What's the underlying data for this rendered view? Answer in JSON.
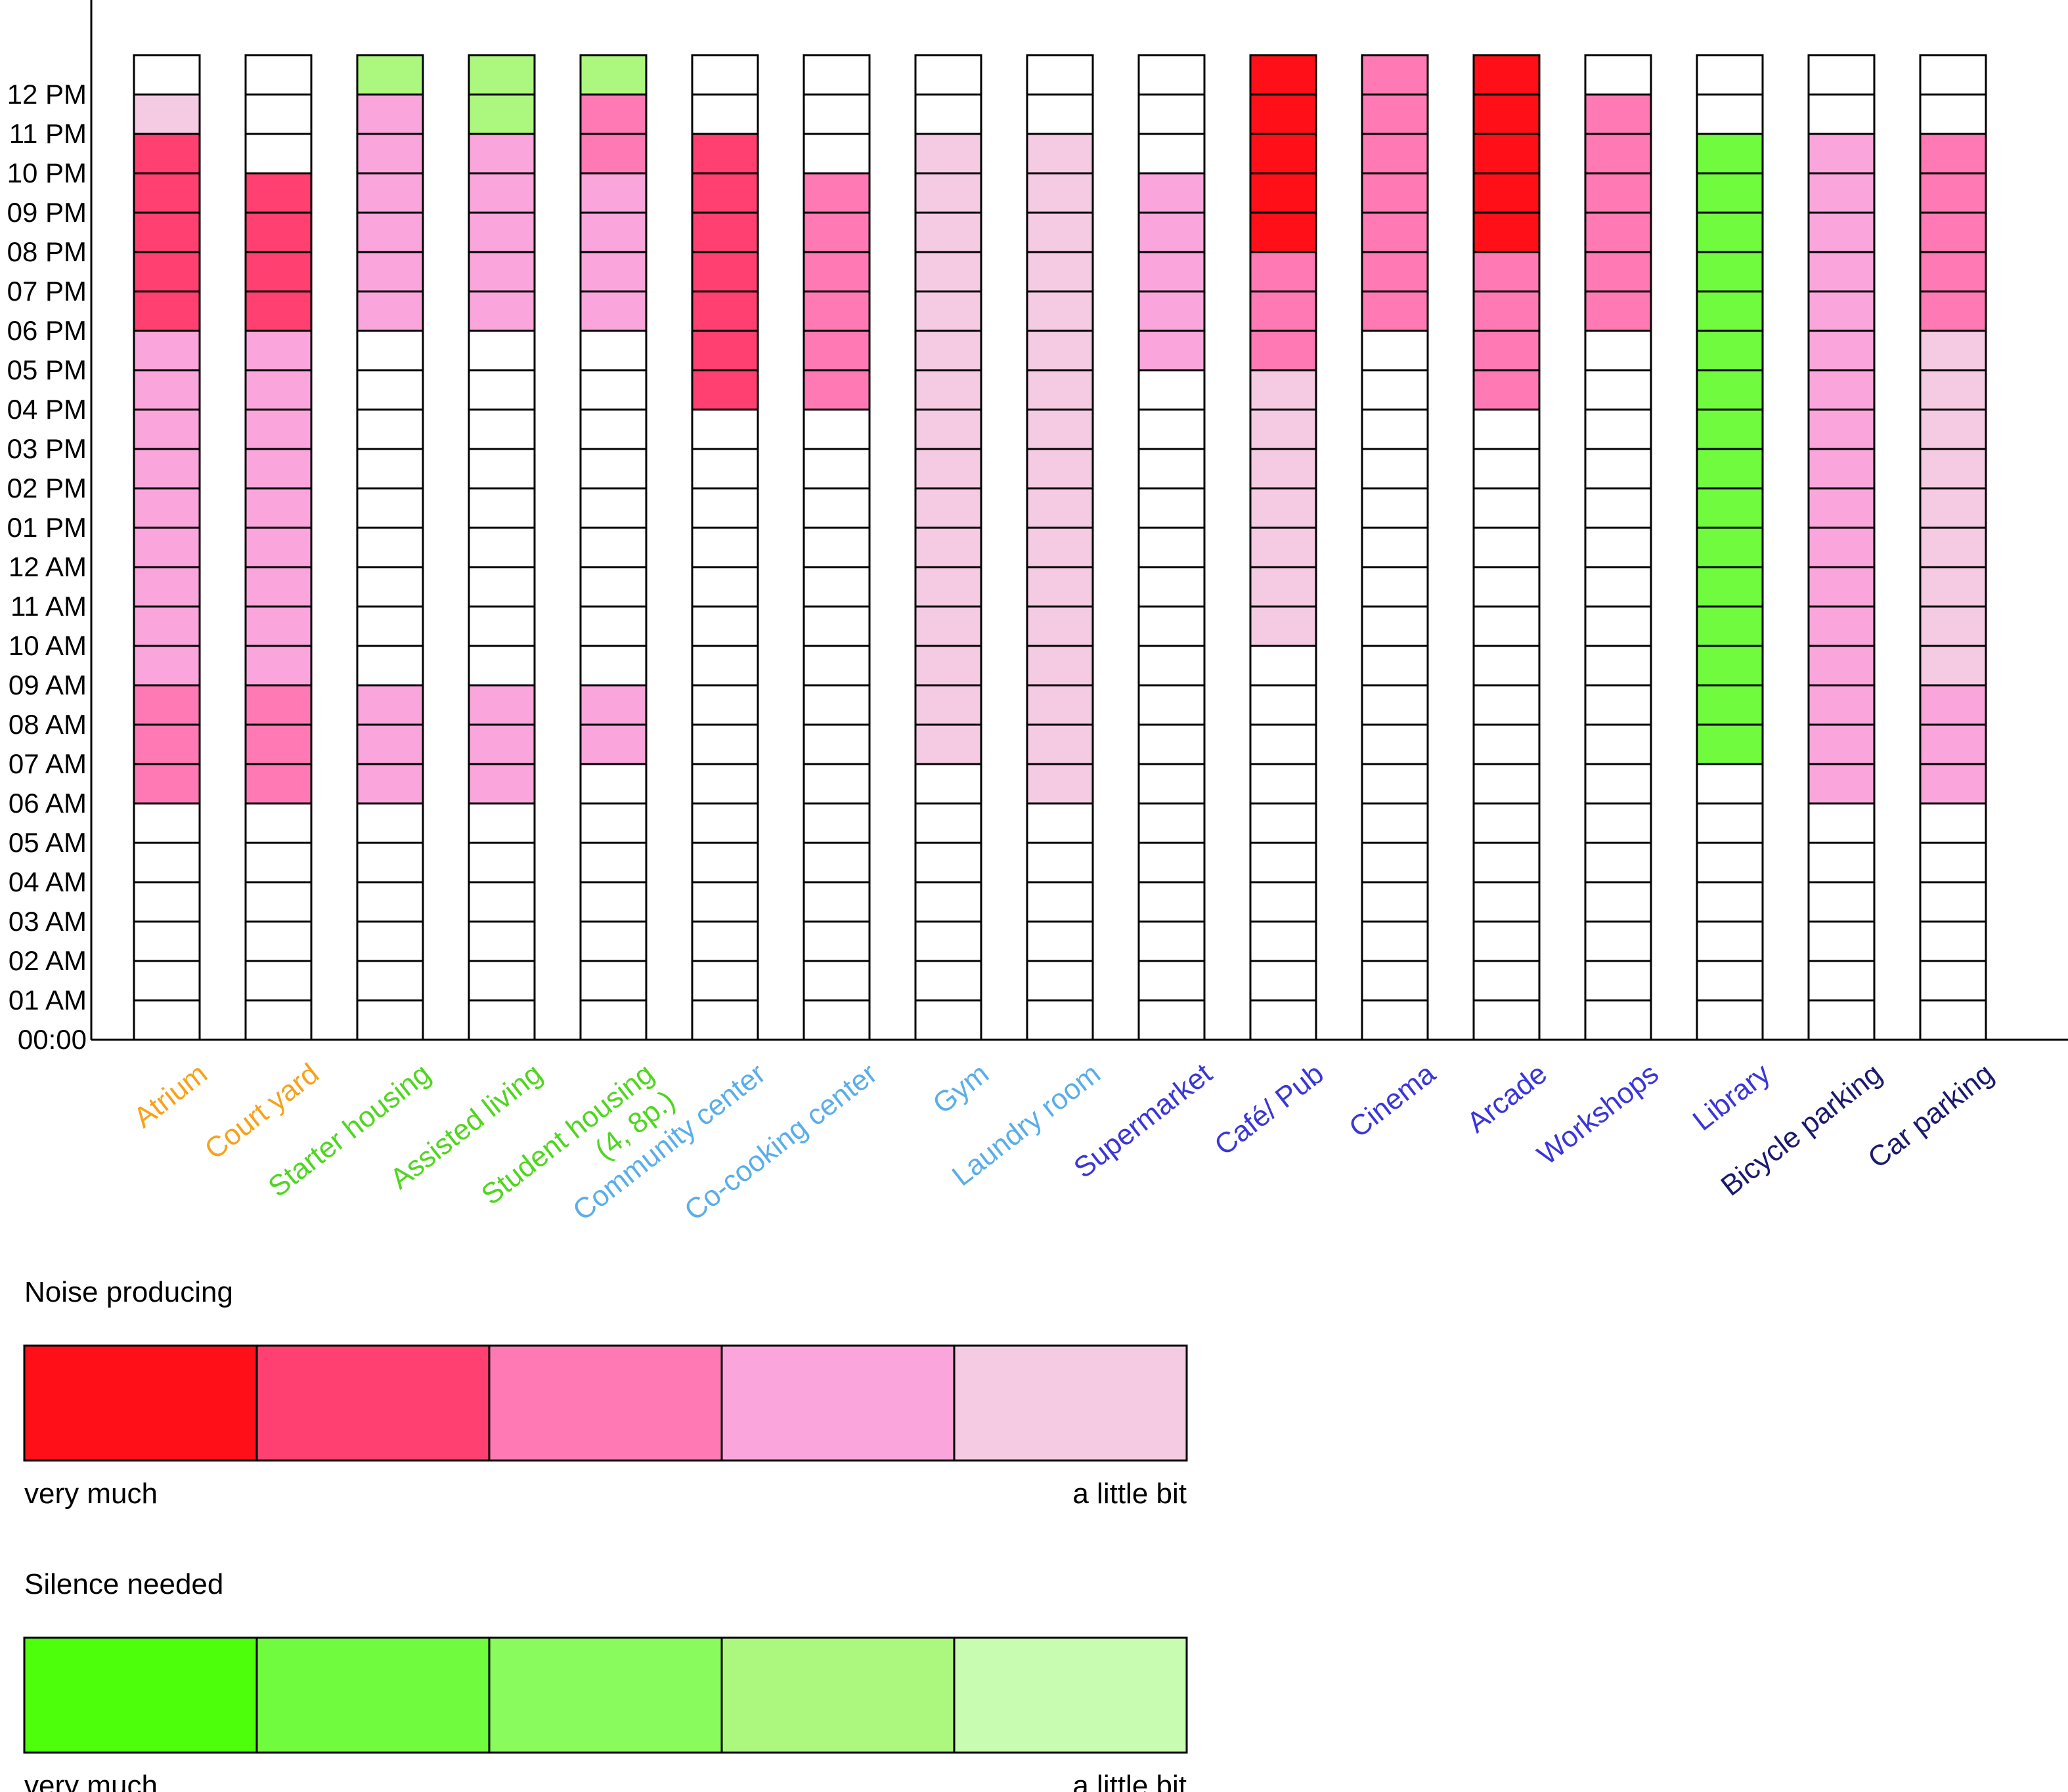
{
  "chart_data": {
    "type": "heatmap",
    "y_ticks": [
      "00:00",
      "01 AM",
      "02 AM",
      "03 AM",
      "04 AM",
      "05 AM",
      "06 AM",
      "07 AM",
      "08 AM",
      "09 AM",
      "10 AM",
      "11 AM",
      "12 AM",
      "01 PM",
      "02 PM",
      "03 PM",
      "04 PM",
      "05 PM",
      "06 PM",
      "07 PM",
      "08 PM",
      "09 PM",
      "10 PM",
      "11 PM",
      "12 PM"
    ],
    "slot_count": 25,
    "level_note": "cells listed from bottom (00:00-01 AM) upward; 0 = none, N1..N5 = noise producing (N1 very much .. N5 a little bit), S1..S5 = silence needed (S1 very much .. S5 a little bit)",
    "columns": [
      {
        "label": "Atrium",
        "color": "#f7a21b",
        "cells": [
          0,
          0,
          0,
          0,
          0,
          0,
          "N3",
          "N3",
          "N3",
          "N4",
          "N4",
          "N4",
          "N4",
          "N4",
          "N4",
          "N4",
          "N4",
          "N4",
          "N2",
          "N2",
          "N2",
          "N2",
          "N2",
          "N5",
          0
        ]
      },
      {
        "label": "Court yard",
        "color": "#f7a21b",
        "cells": [
          0,
          0,
          0,
          0,
          0,
          0,
          "N3",
          "N3",
          "N3",
          "N4",
          "N4",
          "N4",
          "N4",
          "N4",
          "N4",
          "N4",
          "N4",
          "N4",
          "N2",
          "N2",
          "N2",
          "N2",
          0,
          0,
          0
        ]
      },
      {
        "label": "Starter housing",
        "color": "#4fd61e",
        "cells": [
          0,
          0,
          0,
          0,
          0,
          0,
          "N4",
          "N4",
          "N4",
          0,
          0,
          0,
          0,
          0,
          0,
          0,
          0,
          0,
          "N4",
          "N4",
          "N4",
          "N4",
          "N4",
          "N4",
          "S4"
        ]
      },
      {
        "label": "Assisted living",
        "color": "#4fd61e",
        "cells": [
          0,
          0,
          0,
          0,
          0,
          0,
          "N4",
          "N4",
          "N4",
          0,
          0,
          0,
          0,
          0,
          0,
          0,
          0,
          0,
          "N4",
          "N4",
          "N4",
          "N4",
          "N4",
          "S4",
          "S4"
        ]
      },
      {
        "label": "Student housing\n(4, 8p.)",
        "color": "#4fd61e",
        "cells": [
          0,
          0,
          0,
          0,
          0,
          0,
          0,
          "N4",
          "N4",
          0,
          0,
          0,
          0,
          0,
          0,
          0,
          0,
          0,
          "N4",
          "N4",
          "N4",
          "N4",
          "N3",
          "N3",
          "S4"
        ]
      },
      {
        "label": "Community center",
        "color": "#5aaee8",
        "cells": [
          0,
          0,
          0,
          0,
          0,
          0,
          0,
          0,
          0,
          0,
          0,
          0,
          0,
          0,
          0,
          0,
          "N2",
          "N2",
          "N2",
          "N2",
          "N2",
          "N2",
          "N2",
          0,
          0
        ]
      },
      {
        "label": "Co-cooking center",
        "color": "#5aaee8",
        "cells": [
          0,
          0,
          0,
          0,
          0,
          0,
          0,
          0,
          0,
          0,
          0,
          0,
          0,
          0,
          0,
          0,
          "N3",
          "N3",
          "N3",
          "N3",
          "N3",
          "N3",
          0,
          0,
          0
        ]
      },
      {
        "label": "Gym",
        "color": "#5aaee8",
        "cells": [
          0,
          0,
          0,
          0,
          0,
          0,
          0,
          "N5",
          "N5",
          "N5",
          "N5",
          "N5",
          "N5",
          "N5",
          "N5",
          "N5",
          "N5",
          "N5",
          "N5",
          "N5",
          "N5",
          "N5",
          "N5",
          0,
          0
        ]
      },
      {
        "label": "Laundry room",
        "color": "#5aaee8",
        "cells": [
          0,
          0,
          0,
          0,
          0,
          0,
          "N5",
          "N5",
          "N5",
          "N5",
          "N5",
          "N5",
          "N5",
          "N5",
          "N5",
          "N5",
          "N5",
          "N5",
          "N5",
          "N5",
          "N5",
          "N5",
          "N5",
          0,
          0
        ]
      },
      {
        "label": "Supermarket",
        "color": "#3a36d9",
        "cells": [
          0,
          0,
          0,
          0,
          0,
          0,
          0,
          0,
          0,
          0,
          0,
          0,
          0,
          0,
          0,
          0,
          0,
          "N4",
          "N4",
          "N4",
          "N4",
          "N4",
          0,
          0,
          0
        ]
      },
      {
        "label": "Café/ Pub",
        "color": "#3a36d9",
        "cells": [
          0,
          0,
          0,
          0,
          0,
          0,
          0,
          0,
          0,
          0,
          "N5",
          "N5",
          "N5",
          "N5",
          "N5",
          "N5",
          "N5",
          "N3",
          "N3",
          "N3",
          "N1",
          "N1",
          "N1",
          "N1",
          "N1"
        ]
      },
      {
        "label": "Cinema",
        "color": "#3a36d9",
        "cells": [
          0,
          0,
          0,
          0,
          0,
          0,
          0,
          0,
          0,
          0,
          0,
          0,
          0,
          0,
          0,
          0,
          0,
          0,
          "N3",
          "N3",
          "N3",
          "N3",
          "N3",
          "N3",
          "N3"
        ]
      },
      {
        "label": "Arcade",
        "color": "#3a36d9",
        "cells": [
          0,
          0,
          0,
          0,
          0,
          0,
          0,
          0,
          0,
          0,
          0,
          0,
          0,
          0,
          0,
          0,
          "N3",
          "N3",
          "N3",
          "N3",
          "N1",
          "N1",
          "N1",
          "N1",
          "N1"
        ]
      },
      {
        "label": "Workshops",
        "color": "#3a36d9",
        "cells": [
          0,
          0,
          0,
          0,
          0,
          0,
          0,
          0,
          0,
          0,
          0,
          0,
          0,
          0,
          0,
          0,
          0,
          0,
          "N3",
          "N3",
          "N3",
          "N3",
          "N3",
          "N3",
          0
        ]
      },
      {
        "label": "Library",
        "color": "#3a36d9",
        "cells": [
          0,
          0,
          0,
          0,
          0,
          0,
          0,
          "S2",
          "S2",
          "S2",
          "S2",
          "S2",
          "S2",
          "S2",
          "S2",
          "S2",
          "S2",
          "S2",
          "S2",
          "S2",
          "S2",
          "S2",
          "S2",
          0,
          0
        ]
      },
      {
        "label": "Bicycle parking",
        "color": "#1a1a6e",
        "cells": [
          0,
          0,
          0,
          0,
          0,
          0,
          "N4",
          "N4",
          "N4",
          "N4",
          "N4",
          "N4",
          "N4",
          "N4",
          "N4",
          "N4",
          "N4",
          "N4",
          "N4",
          "N4",
          "N4",
          "N4",
          "N4",
          0,
          0
        ]
      },
      {
        "label": "Car parking",
        "color": "#1a1a6e",
        "cells": [
          0,
          0,
          0,
          0,
          0,
          0,
          "N4",
          "N4",
          "N4",
          "N5",
          "N5",
          "N5",
          "N5",
          "N5",
          "N5",
          "N5",
          "N5",
          "N5",
          "N3",
          "N3",
          "N3",
          "N3",
          "N3",
          0,
          0
        ]
      }
    ],
    "legends": [
      {
        "title": "Noise producing",
        "left_label": "very much",
        "right_label": "a little bit",
        "swatches": [
          "#ff1018",
          "#ff4070",
          "#ff7ab4",
          "#faa6dc",
          "#f5cbe3"
        ]
      },
      {
        "title": "Silence needed",
        "left_label": "very much",
        "right_label": "a little bit",
        "swatches": [
          "#4dff0a",
          "#70fb3e",
          "#8afb5c",
          "#acf87e",
          "#c8fcb0"
        ]
      }
    ]
  }
}
